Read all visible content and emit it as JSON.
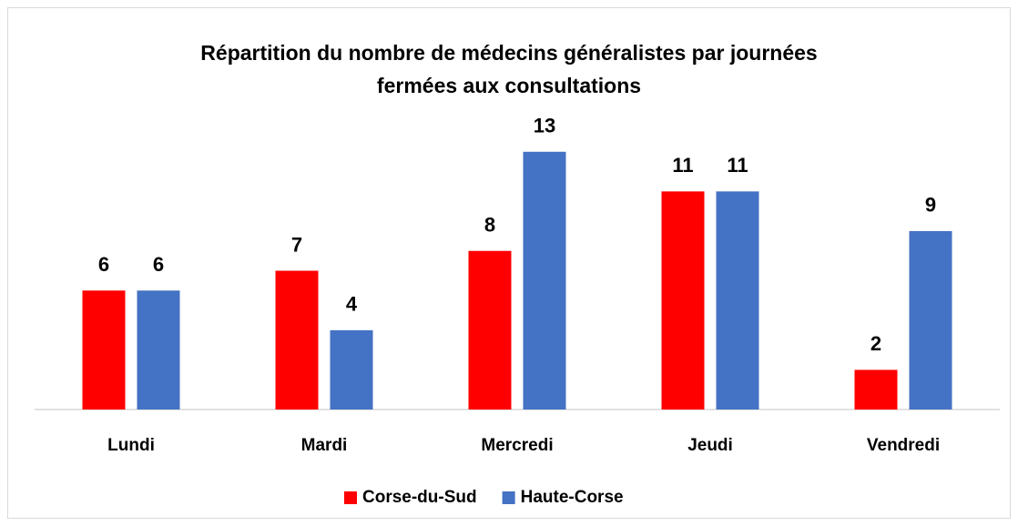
{
  "chart_data": {
    "type": "bar",
    "title": "Répartition du nombre de médecins généralistes par journées fermées aux consultations",
    "categories": [
      "Lundi",
      "Mardi",
      "Mercredi",
      "Jeudi",
      "Vendredi"
    ],
    "series": [
      {
        "name": "Corse-du-Sud",
        "color": "#ff0000",
        "values": [
          6,
          7,
          8,
          11,
          2
        ]
      },
      {
        "name": "Haute-Corse",
        "color": "#4472c4",
        "values": [
          6,
          4,
          13,
          11,
          9
        ]
      }
    ],
    "ylim": [
      0,
      14
    ],
    "legend": "bottom"
  }
}
